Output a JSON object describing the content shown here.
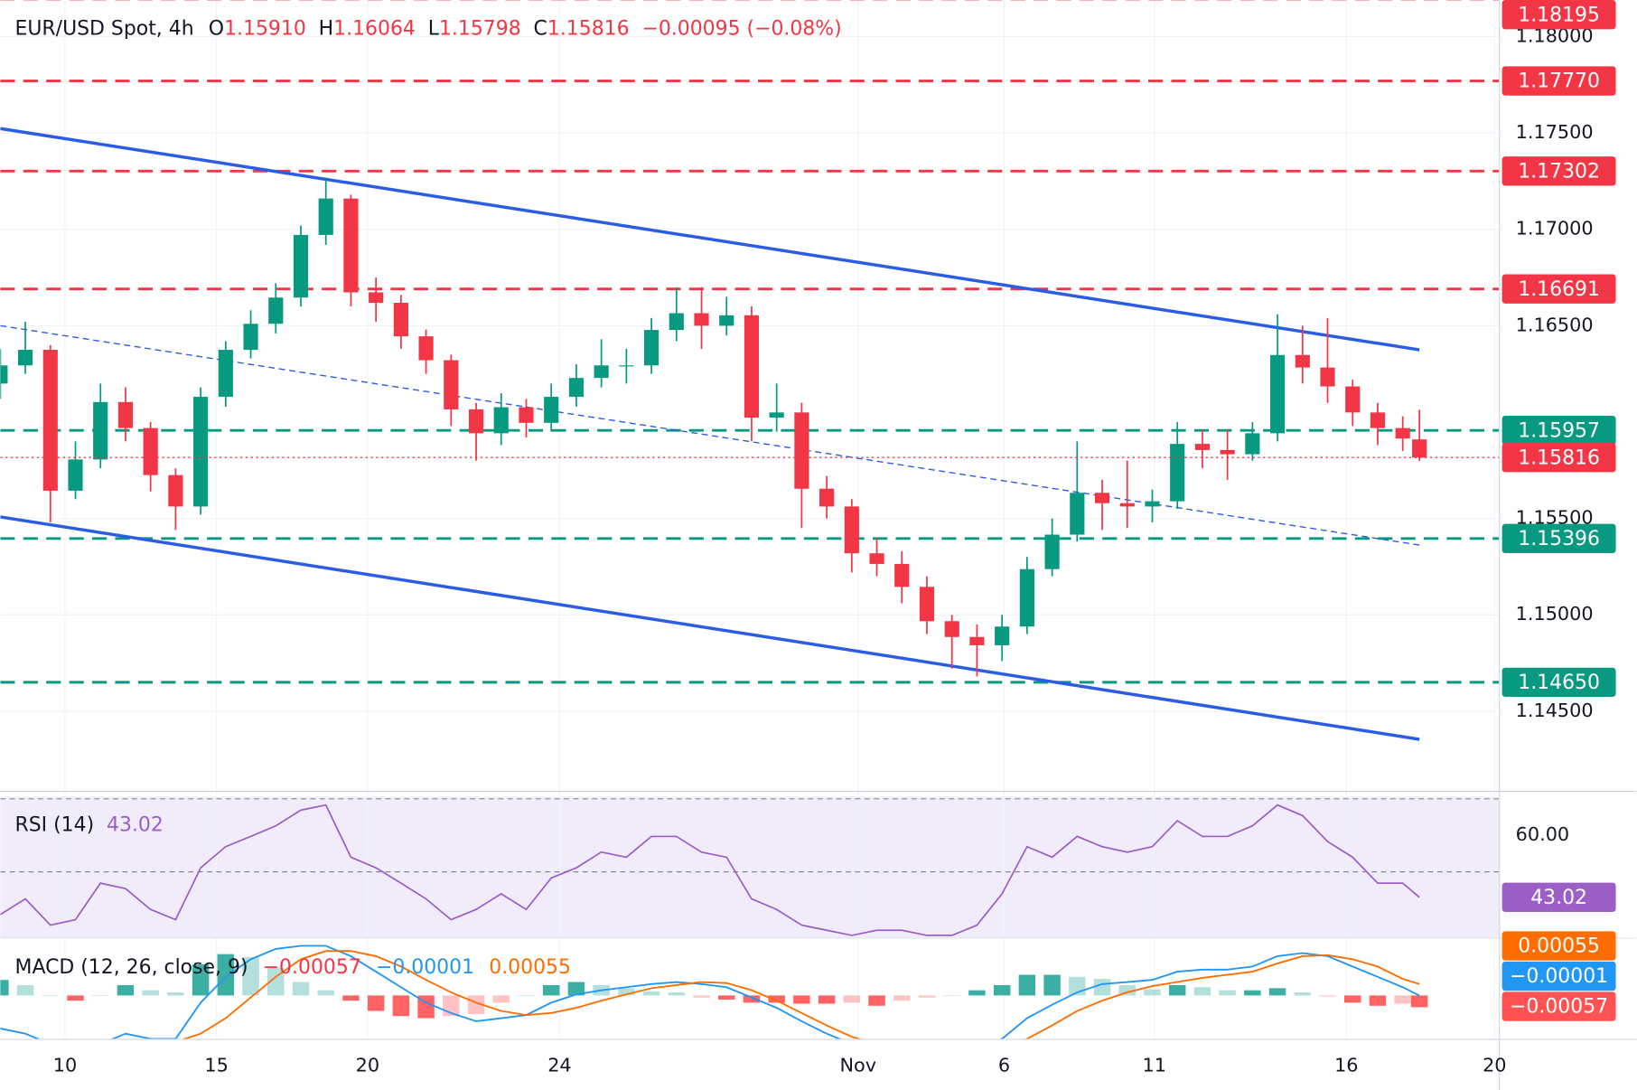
{
  "chart_data": {
    "type": "candlestick",
    "title": "EUR/USD Spot, 4h",
    "ohlc_legend": [
      {
        "key": "O",
        "value": "1.15910"
      },
      {
        "key": "H",
        "value": "1.16064"
      },
      {
        "key": "L",
        "value": "1.15798"
      },
      {
        "key": "C",
        "value": "1.15816"
      }
    ],
    "change_label": "−0.00095 (−0.08%)",
    "x": [
      0,
      3,
      6,
      9,
      12,
      15,
      18,
      21,
      24,
      27,
      30,
      33,
      36,
      39,
      42,
      45,
      48,
      51,
      54,
      57,
      60,
      63,
      66,
      69,
      72,
      75,
      78,
      81,
      84,
      87,
      90,
      93,
      96,
      99,
      102,
      105,
      108,
      111,
      114,
      117,
      120,
      123,
      126,
      129,
      132,
      135,
      138,
      141,
      144,
      147,
      150,
      153,
      156,
      159,
      162,
      165,
      168,
      170
    ],
    "open": [
      1.162,
      1.16294,
      1.16375,
      1.15644,
      1.15806,
      1.16104,
      1.15969,
      1.15725,
      1.15562,
      1.16131,
      1.16375,
      1.1651,
      1.16646,
      1.16971,
      1.1716,
      1.16673,
      1.16619,
      1.16445,
      1.16321,
      1.16066,
      1.15942,
      1.16077,
      1.15996,
      1.16131,
      1.16229,
      1.16294,
      1.16294,
      1.16478,
      1.16565,
      1.165,
      1.16554,
      1.16023,
      1.1605,
      1.15654,
      1.15562,
      1.15319,
      1.15264,
      1.15145,
      1.14967,
      1.14885,
      1.14842,
      1.14939,
      1.15237,
      1.15416,
      1.15633,
      1.15579,
      1.15562,
      1.15589,
      1.15887,
      1.15855,
      1.15833,
      1.15942,
      1.16348,
      1.16283,
      1.16185,
      1.1605,
      1.15969,
      1.1591
    ],
    "high": [
      1.1638,
      1.1652,
      1.164,
      1.159,
      1.162,
      1.1618,
      1.16,
      1.1576,
      1.1618,
      1.1642,
      1.1658,
      1.1672,
      1.1702,
      1.17269,
      1.1718,
      1.1675,
      1.1666,
      1.1648,
      1.1635,
      1.161,
      1.1615,
      1.1612,
      1.162,
      1.163,
      1.1643,
      1.1638,
      1.1654,
      1.167,
      1.167,
      1.1665,
      1.166,
      1.162,
      1.161,
      1.1572,
      1.156,
      1.154,
      1.1533,
      1.152,
      1.15,
      1.1495,
      1.15,
      1.153,
      1.155,
      1.159,
      1.157,
      1.158,
      1.1565,
      1.16,
      1.1596,
      1.1596,
      1.16,
      1.1656,
      1.165,
      1.1654,
      1.1622,
      1.161,
      1.1603,
      1.16064
    ],
    "low": [
      1.1612,
      1.1625,
      1.1548,
      1.156,
      1.1576,
      1.159,
      1.1564,
      1.1544,
      1.1552,
      1.1608,
      1.1633,
      1.1646,
      1.166,
      1.1692,
      1.166,
      1.1652,
      1.1638,
      1.1625,
      1.1598,
      1.158,
      1.1588,
      1.1592,
      1.1595,
      1.1608,
      1.1618,
      1.162,
      1.1625,
      1.1642,
      1.1638,
      1.1645,
      1.159,
      1.1595,
      1.1545,
      1.155,
      1.1522,
      1.152,
      1.1506,
      1.149,
      1.1472,
      1.1468,
      1.1476,
      1.149,
      1.152,
      1.1538,
      1.1544,
      1.1545,
      1.1548,
      1.1555,
      1.1576,
      1.157,
      1.158,
      1.159,
      1.162,
      1.161,
      1.1598,
      1.1588,
      1.1585,
      1.15798
    ],
    "close": [
      1.16294,
      1.16375,
      1.15644,
      1.15806,
      1.16104,
      1.15969,
      1.15725,
      1.15562,
      1.16131,
      1.16375,
      1.1651,
      1.16646,
      1.16971,
      1.1716,
      1.16673,
      1.16619,
      1.16445,
      1.16321,
      1.16066,
      1.15942,
      1.16077,
      1.15996,
      1.16131,
      1.16229,
      1.16294,
      1.16294,
      1.16478,
      1.16565,
      1.165,
      1.16554,
      1.16023,
      1.1605,
      1.15654,
      1.15562,
      1.15319,
      1.15264,
      1.15145,
      1.14967,
      1.14885,
      1.14842,
      1.14939,
      1.15237,
      1.15416,
      1.15633,
      1.15579,
      1.15562,
      1.15589,
      1.15887,
      1.15855,
      1.15833,
      1.15942,
      1.16348,
      1.16283,
      1.16185,
      1.1605,
      1.15969,
      1.15915,
      1.15816
    ],
    "up_color": "#089981",
    "down_color": "#f23645",
    "xlim": [
      0,
      179.4
    ],
    "xticks": [
      {
        "value": 7.75,
        "label": "10"
      },
      {
        "value": 25.9,
        "label": "15"
      },
      {
        "value": 44,
        "label": "20"
      },
      {
        "value": 67,
        "label": "24"
      },
      {
        "value": 102.75,
        "label": "Nov"
      },
      {
        "value": 120.25,
        "label": "6"
      },
      {
        "value": 138.25,
        "label": "11"
      },
      {
        "value": 161.25,
        "label": "16"
      },
      {
        "value": 179,
        "label": "20"
      }
    ],
    "ylim": [
      1.141,
      1.1819
    ],
    "yticks": [
      {
        "value": 1.18,
        "label": "1.18000"
      },
      {
        "value": 1.175,
        "label": "1.17500"
      },
      {
        "value": 1.17,
        "label": "1.17000"
      },
      {
        "value": 1.165,
        "label": "1.16500"
      },
      {
        "value": 1.155,
        "label": "1.15500"
      },
      {
        "value": 1.15,
        "label": "1.15000"
      },
      {
        "value": 1.145,
        "label": "1.14500"
      }
    ],
    "grid": true,
    "levels": [
      {
        "value": 1.18195,
        "label": "1.18195",
        "color": "#f23645"
      },
      {
        "value": 1.1777,
        "label": "1.17770",
        "color": "#f23645"
      },
      {
        "value": 1.17302,
        "label": "1.17302",
        "color": "#f23645"
      },
      {
        "value": 1.16691,
        "label": "1.16691",
        "color": "#f23645"
      },
      {
        "value": 1.15957,
        "label": "1.15957",
        "color": "#089981"
      },
      {
        "value": 1.15396,
        "label": "1.15396",
        "color": "#089981"
      },
      {
        "value": 1.1465,
        "label": "1.14650",
        "color": "#089981"
      }
    ],
    "last_price": {
      "value": 1.15816,
      "label": "1.15816",
      "color": "#f23645"
    },
    "trendlines": [
      {
        "x": [
          0,
          170
        ],
        "y": [
          1.17523,
          1.16375
        ],
        "color": "#2b5ce6",
        "dashed": false
      },
      {
        "x": [
          0,
          170
        ],
        "y": [
          1.15508,
          1.14354
        ],
        "color": "#2b5ce6",
        "dashed": false
      },
      {
        "x": [
          0,
          170
        ],
        "y": [
          1.165,
          1.15362
        ],
        "color": "#2b5ce6",
        "dashed": true
      }
    ],
    "rsi": {
      "title": "RSI (14)",
      "color": "#9c5fc7",
      "values": [
        38.3,
        42.6,
        35.4,
        36.9,
        46.9,
        45.4,
        39.7,
        36.9,
        51.1,
        56.9,
        59.7,
        62.6,
        66.9,
        68.3,
        54,
        51.1,
        46.9,
        42.6,
        36.9,
        39.7,
        44,
        39.7,
        48.3,
        51.1,
        55.4,
        54,
        59.7,
        59.7,
        55.4,
        54,
        42.6,
        39.7,
        35.4,
        34,
        32.6,
        34,
        34,
        32.6,
        32.6,
        35.4,
        44,
        56.9,
        54,
        59.7,
        56.9,
        55.4,
        56.9,
        64,
        59.7,
        59.7,
        62.6,
        68.3,
        65.4,
        58.3,
        54,
        46.9,
        46.9,
        43.02
      ],
      "ylim": [
        32,
        70.6
      ],
      "yticks": [
        {
          "value": 60,
          "label": "60.00"
        }
      ],
      "bands": [
        70,
        50
      ]
    },
    "macd": {
      "title": "MACD (12, 26, close, 9)",
      "ylim": [
        -0.0021,
        0.00275
      ],
      "histogram": {
        "color": "#ff5252",
        "up_color": "#26a69a",
        "value_label": "−0.00057",
        "values": [
          0.00075,
          0.0005,
          0,
          -0.00025,
          0,
          0.0005,
          0.00025,
          0.00015,
          0.0015,
          0.002,
          0.00185,
          0.00135,
          0.00065,
          0.00025,
          -0.00025,
          -0.00075,
          -0.001,
          -0.0011,
          -0.001,
          -0.0009,
          -0.00035,
          0,
          0.0005,
          0.00065,
          0.0005,
          0.00035,
          0.0002,
          0.00015,
          -0.0001,
          -0.0002,
          -0.00035,
          -0.00035,
          -0.0004,
          -0.0004,
          -0.00035,
          -0.0005,
          -0.00025,
          -0.0001,
          0,
          0.00025,
          0.0005,
          0.001,
          0.001,
          0.0009,
          0.0008,
          0.0005,
          0.0003,
          0.0005,
          0.0004,
          0.00025,
          0.00025,
          0.00035,
          0.00015,
          -5e-05,
          -0.00035,
          -0.0005,
          -0.0004,
          -0.00057
        ]
      },
      "macd": {
        "color": "#2196f3",
        "value_label": "−0.00001",
        "values": [
          -0.0016,
          -0.00185,
          -0.00235,
          -0.0026,
          -0.00235,
          -0.00185,
          -0.0021,
          -0.0021,
          -0.00035,
          0.0009,
          0.00175,
          0.00225,
          0.0024,
          0.0024,
          0.0019,
          0.00115,
          0.0004,
          -0.00035,
          -0.00085,
          -0.00125,
          -0.0011,
          -0.00095,
          -0.00035,
          5e-05,
          0.00025,
          0.0004,
          0.00055,
          0.00065,
          0.00055,
          0.0004,
          -0.0001,
          -0.0006,
          -0.00125,
          -0.00185,
          -0.00235,
          -0.00285,
          -0.00285,
          -0.00285,
          -0.00285,
          -0.0026,
          -0.0021,
          -0.0011,
          -0.00045,
          0.00015,
          0.00055,
          0.00065,
          0.00075,
          0.00115,
          0.00125,
          0.00125,
          0.0014,
          0.0019,
          0.00205,
          0.0019,
          0.0014,
          0.0009,
          0.0004,
          -1e-05
        ]
      },
      "signal": {
        "color": "#ff6d00",
        "value_label": "0.00055",
        "values": [
          -0.00235,
          -0.00235,
          -0.00235,
          -0.00235,
          -0.00235,
          -0.00235,
          -0.00235,
          -0.00225,
          -0.00185,
          -0.0011,
          -0.0001,
          0.0009,
          0.00175,
          0.00215,
          0.00215,
          0.0019,
          0.0014,
          0.00075,
          0.00015,
          -0.00035,
          -0.00075,
          -0.00095,
          -0.00085,
          -0.0006,
          -0.00025,
          5e-05,
          0.00035,
          0.0005,
          0.00065,
          0.0006,
          0.00025,
          -0.00025,
          -0.00085,
          -0.00145,
          -0.002,
          -0.00235,
          -0.0026,
          -0.00275,
          -0.00285,
          -0.00285,
          -0.0026,
          -0.0021,
          -0.00145,
          -0.00075,
          -0.00025,
          0.00015,
          0.00045,
          0.00065,
          0.00085,
          0.001,
          0.00115,
          0.00155,
          0.0019,
          0.00195,
          0.00175,
          0.0014,
          0.0008,
          0.00055
        ]
      }
    }
  }
}
